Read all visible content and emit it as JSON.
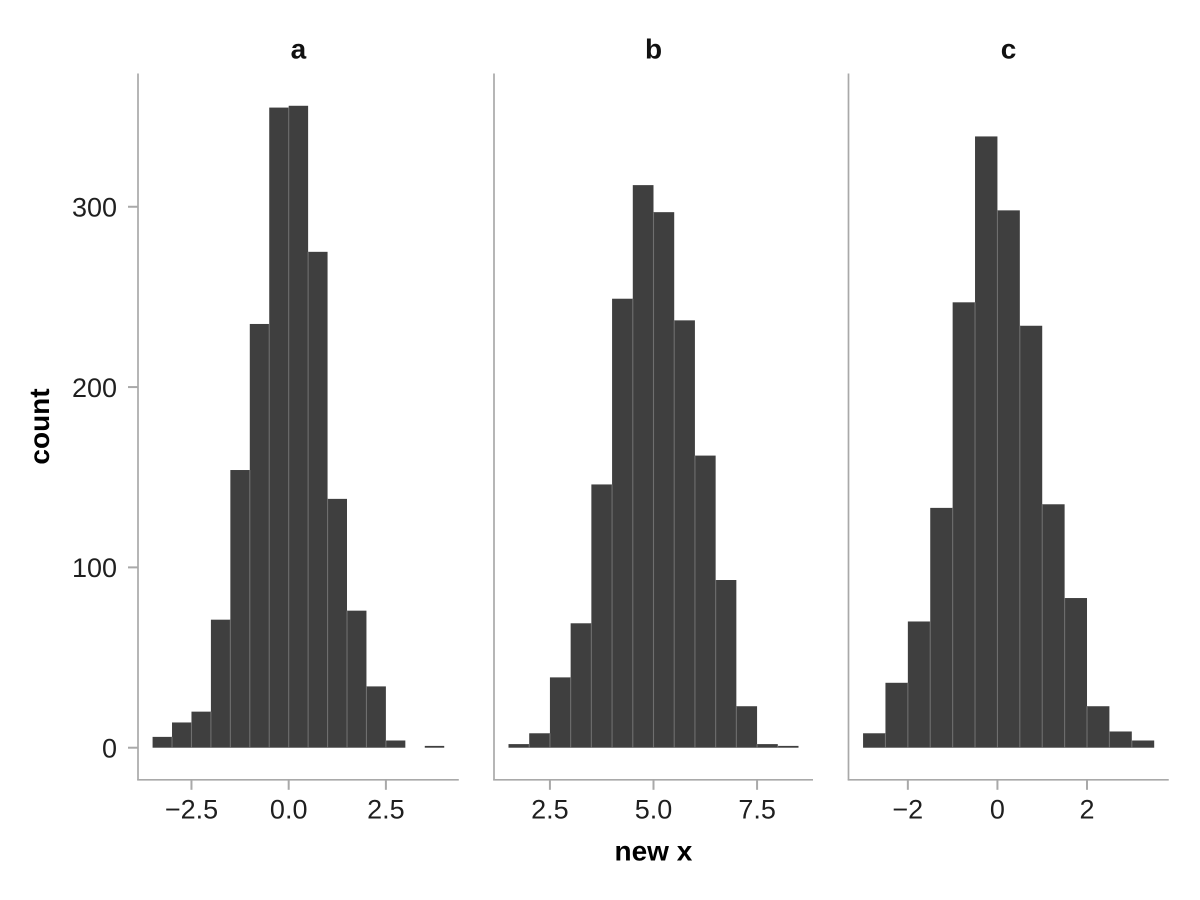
{
  "figure": {
    "kind": "faceted histogram",
    "background": "#ffffff"
  },
  "chart_data": {
    "type": "bar",
    "subtype": "histogram",
    "title": "",
    "xlabel": "new x",
    "ylabel": "count",
    "legend": false,
    "grid": false,
    "bar_fill": "#3f3f3f",
    "bar_seam_color": "#6f6f6f",
    "axis_line_color": "#a9a9a9",
    "tick_color": "#a9a9a9",
    "text_color": "#1f1f1f",
    "y_ticks": [
      0,
      100,
      200,
      300
    ],
    "y_tick_labels": [
      "0",
      "100",
      "200",
      "300"
    ],
    "ylim": [
      -17.8,
      373.9
    ],
    "bin_width": 0.5,
    "panels": [
      {
        "label": "a",
        "xlim": [
          -3.875,
          4.375
        ],
        "x_ticks": [
          -2.5,
          0.0,
          2.5
        ],
        "x_tick_labels": [
          "−2.5",
          "0.0",
          "2.5"
        ],
        "bin_start": -3.5,
        "bin_edges": [
          -3.5,
          -3.0,
          -2.5,
          -2.0,
          -1.5,
          -1.0,
          -0.5,
          0.0,
          0.5,
          1.0,
          1.5,
          2.0,
          2.5,
          3.0,
          3.5,
          4.0
        ],
        "counts": [
          6,
          14,
          20,
          71,
          154,
          235,
          355,
          356,
          275,
          138,
          76,
          34,
          4,
          0,
          1
        ]
      },
      {
        "label": "b",
        "xlim": [
          1.15,
          8.85
        ],
        "x_ticks": [
          2.5,
          5.0,
          7.5
        ],
        "x_tick_labels": [
          "2.5",
          "5.0",
          "7.5"
        ],
        "bin_start": 1.5,
        "bin_edges": [
          1.5,
          2.0,
          2.5,
          3.0,
          3.5,
          4.0,
          4.5,
          5.0,
          5.5,
          6.0,
          6.5,
          7.0,
          7.5,
          8.0,
          8.5
        ],
        "counts": [
          2,
          8,
          39,
          69,
          146,
          249,
          312,
          297,
          237,
          162,
          93,
          23,
          2,
          1
        ]
      },
      {
        "label": "c",
        "xlim": [
          -3.325,
          3.825
        ],
        "x_ticks": [
          -2,
          0,
          2
        ],
        "x_tick_labels": [
          "−2",
          "0",
          "2"
        ],
        "bin_start": -3.0,
        "bin_edges": [
          -3.0,
          -2.5,
          -2.0,
          -1.5,
          -1.0,
          -0.5,
          0.0,
          0.5,
          1.0,
          1.5,
          2.0,
          2.5,
          3.0,
          3.5
        ],
        "counts": [
          8,
          36,
          70,
          133,
          247,
          339,
          298,
          234,
          135,
          83,
          23,
          9,
          4
        ]
      }
    ]
  }
}
